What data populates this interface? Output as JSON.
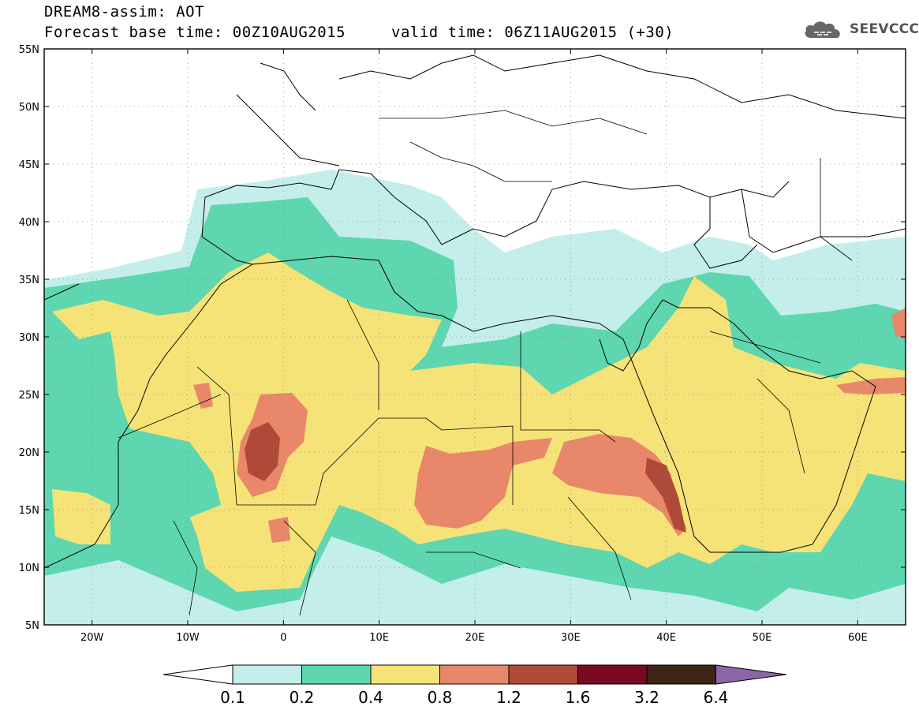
{
  "title": {
    "line1": "DREAM8-assim: AOT",
    "base_time": "Forecast base time: 00Z10AUG2015",
    "valid_time": "valid time: 06Z11AUG2015 (+30)"
  },
  "logo": {
    "text": "SEEVCCC",
    "icon": "cloud-icon"
  },
  "map": {
    "lon_range": [
      -25,
      65
    ],
    "lat_range": [
      5,
      55
    ],
    "lat_labels": [
      "5N",
      "10N",
      "15N",
      "20N",
      "25N",
      "30N",
      "35N",
      "40N",
      "45N",
      "50N",
      "55N"
    ],
    "lon_labels": [
      "20W",
      "10W",
      "0",
      "10E",
      "20E",
      "30E",
      "40E",
      "50E",
      "60E"
    ],
    "lon_ticks": [
      -20,
      -10,
      0,
      10,
      20,
      30,
      40,
      50,
      60
    ],
    "lat_ticks": [
      5,
      10,
      15,
      20,
      25,
      30,
      35,
      40,
      45,
      50,
      55
    ]
  },
  "colorbar": {
    "levels": [
      "0.1",
      "0.2",
      "0.4",
      "0.8",
      "1.2",
      "1.6",
      "3.2",
      "6.4"
    ],
    "colors": [
      "#ffffff",
      "#c4eeea",
      "#5ed6b0",
      "#f5e378",
      "#e8876a",
      "#b04a38",
      "#7a0a22",
      "#3d2414",
      "#8a68a8"
    ]
  }
}
